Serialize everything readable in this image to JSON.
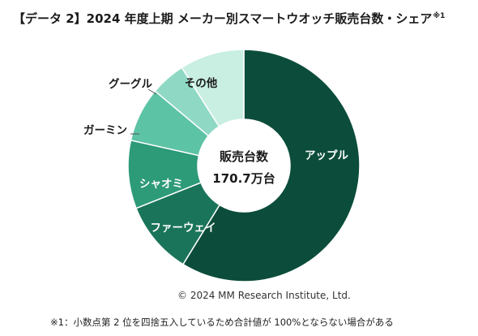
{
  "title": {
    "text": "【データ 2】2024 年度上期 メーカー別スマートウオッチ販売台数・シェア",
    "mark": "※1"
  },
  "center": {
    "label": "販売台数",
    "value": "170.7万台"
  },
  "copyright": "© 2024 MM Research Institute, Ltd.",
  "footnote": "※1：小数点第 2 位を四捨五入しているため合計値が 100%とならない場合がある",
  "chart_data": {
    "type": "pie",
    "donut": true,
    "start_angle_deg": 0,
    "direction": "clockwise",
    "slices": [
      {
        "label": "アップル",
        "value": 58.8,
        "color": "#0b4d3a"
      },
      {
        "label": "ファーウェイ",
        "value": 10.2,
        "color": "#1a7459"
      },
      {
        "label": "シャオミ",
        "value": 9.5,
        "color": "#2d9a78"
      },
      {
        "label": "ガーミン",
        "value": 7.6,
        "color": "#5dc3a5"
      },
      {
        "label": "グーグル",
        "value": 4.9,
        "color": "#8fd9c4"
      },
      {
        "label": "その他",
        "value": 9.0,
        "color": "#c9eee2"
      }
    ]
  }
}
